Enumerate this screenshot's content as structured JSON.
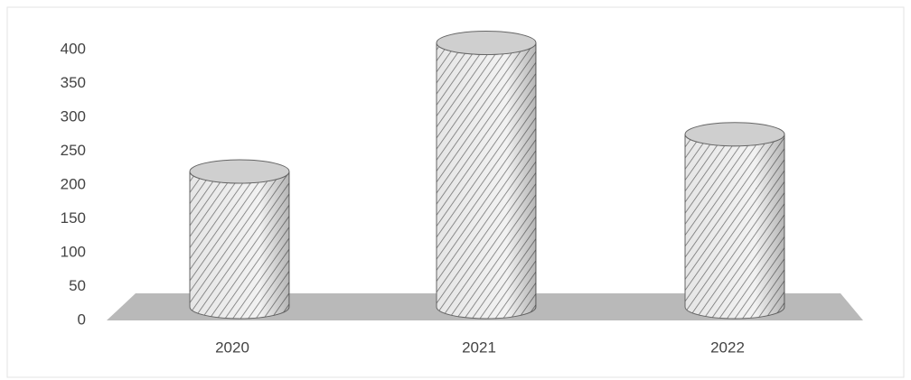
{
  "chart_data": {
    "type": "cylinder",
    "categories": [
      "2020",
      "2021",
      "2022"
    ],
    "values": [
      200,
      390,
      255
    ],
    "color": "#cfcfcf",
    "ylim": [
      0,
      400
    ],
    "yticks": [
      0,
      50,
      100,
      150,
      200,
      250,
      300,
      350,
      400
    ]
  }
}
